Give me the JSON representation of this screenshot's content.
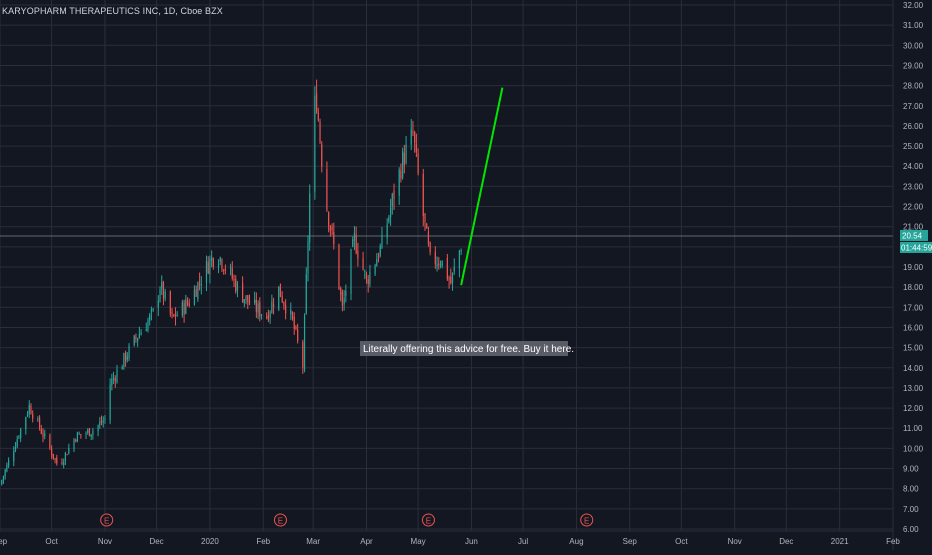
{
  "header": {
    "title": "KARYOPHARM THERAPEUTICS INC, 1D, Cboe BZX"
  },
  "price_badges": {
    "last_price": "20.54",
    "countdown": "01:44:59"
  },
  "annotation": {
    "text": "Literally offering this advice for free. Buy it here."
  },
  "earnings_marker_label": "E",
  "colors": {
    "background": "#131722",
    "grid": "#2a2e39",
    "up": "#26a69a",
    "down": "#ef5350",
    "projection": "#00e600",
    "badge": "#26a69a",
    "axis_text": "#b2b5be"
  },
  "chart_data": {
    "type": "candlestick",
    "title": "KARYOPHARM THERAPEUTICS INC, 1D, Cboe BZX",
    "x_tick_labels": [
      "Sep",
      "Oct",
      "Nov",
      "Dec",
      "2020",
      "Feb",
      "Mar",
      "Apr",
      "May",
      "Jun",
      "Jul",
      "Aug",
      "Sep",
      "Oct",
      "Nov",
      "Dec",
      "2021",
      "Feb"
    ],
    "y_tick_labels": [
      "6.00",
      "7.00",
      "8.00",
      "9.00",
      "10.00",
      "11.00",
      "12.00",
      "13.00",
      "14.00",
      "15.00",
      "16.00",
      "17.00",
      "18.00",
      "19.00",
      "20.00",
      "21.00",
      "22.00",
      "23.00",
      "24.00",
      "25.00",
      "26.00",
      "27.00",
      "28.00",
      "29.00",
      "30.00",
      "31.00",
      "32.00"
    ],
    "ylim": [
      6,
      32
    ],
    "grid": true,
    "last_price": 20.54,
    "horizontal_line": 20.54,
    "earnings_markers": [
      "Nov",
      "Feb",
      "May",
      "Aug"
    ],
    "price_path": [
      {
        "x": "2019-09-01",
        "y": 8.2
      },
      {
        "x": "2019-09-18",
        "y": 12.1
      },
      {
        "x": "2019-10-01",
        "y": 9.8
      },
      {
        "x": "2019-10-05",
        "y": 9.1
      },
      {
        "x": "2019-10-15",
        "y": 10.6
      },
      {
        "x": "2019-10-25",
        "y": 10.9
      },
      {
        "x": "2019-11-03",
        "y": 11.6
      },
      {
        "x": "2019-11-04",
        "y": 13.2
      },
      {
        "x": "2019-11-20",
        "y": 15.6
      },
      {
        "x": "2019-11-30",
        "y": 16.8
      },
      {
        "x": "2019-12-03",
        "y": 18.1
      },
      {
        "x": "2019-12-10",
        "y": 16.4
      },
      {
        "x": "2019-12-20",
        "y": 17.3
      },
      {
        "x": "2020-01-01",
        "y": 19.3
      },
      {
        "x": "2020-01-05",
        "y": 19.7
      },
      {
        "x": "2020-01-12",
        "y": 18.8
      },
      {
        "x": "2020-01-18",
        "y": 17.8
      },
      {
        "x": "2020-01-25",
        "y": 17.1
      },
      {
        "x": "2020-02-03",
        "y": 16.6
      },
      {
        "x": "2020-02-10",
        "y": 17.9
      },
      {
        "x": "2020-02-18",
        "y": 16.3
      },
      {
        "x": "2020-02-24",
        "y": 14.1
      },
      {
        "x": "2020-03-01",
        "y": 26.8
      },
      {
        "x": "2020-03-03",
        "y": 27.3
      },
      {
        "x": "2020-03-08",
        "y": 22.5
      },
      {
        "x": "2020-03-13",
        "y": 20.0
      },
      {
        "x": "2020-03-18",
        "y": 16.9
      },
      {
        "x": "2020-03-25",
        "y": 20.4
      },
      {
        "x": "2020-04-01",
        "y": 18.3
      },
      {
        "x": "2020-04-10",
        "y": 20.1
      },
      {
        "x": "2020-04-16",
        "y": 22.3
      },
      {
        "x": "2020-04-22",
        "y": 24.3
      },
      {
        "x": "2020-04-28",
        "y": 25.6
      },
      {
        "x": "2020-05-03",
        "y": 22.1
      },
      {
        "x": "2020-05-08",
        "y": 19.3
      },
      {
        "x": "2020-05-14",
        "y": 19.4
      },
      {
        "x": "2020-05-20",
        "y": 18.2
      },
      {
        "x": "2020-05-26",
        "y": 20.1
      }
    ],
    "projection_line": {
      "from": {
        "x": "2020-05-26",
        "y": 18.1
      },
      "to": {
        "x": "2020-06-19",
        "y": 27.9
      }
    }
  }
}
